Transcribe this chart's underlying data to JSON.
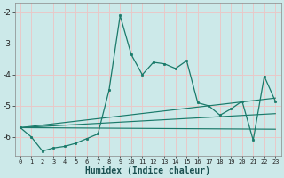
{
  "title": "",
  "xlabel": "Humidex (Indice chaleur)",
  "ylabel": "",
  "background_color": "#cce9e9",
  "grid_color": "#e8c8c8",
  "line_color": "#1a7a6a",
  "xlim": [
    -0.5,
    23.5
  ],
  "ylim": [
    -6.6,
    -1.7
  ],
  "yticks": [
    -2,
    -3,
    -4,
    -5,
    -6
  ],
  "xticks": [
    0,
    1,
    2,
    3,
    4,
    5,
    6,
    7,
    8,
    9,
    10,
    11,
    12,
    13,
    14,
    15,
    16,
    17,
    18,
    19,
    20,
    21,
    22,
    23
  ],
  "series1_x": [
    0,
    1,
    2,
    3,
    4,
    5,
    6,
    7,
    8,
    9,
    10,
    11,
    12,
    13,
    14,
    15,
    16,
    17,
    18,
    19,
    20,
    21,
    22,
    23
  ],
  "series1_y": [
    -5.7,
    -6.0,
    -6.45,
    -6.35,
    -6.3,
    -6.2,
    -6.05,
    -5.9,
    -4.5,
    -2.1,
    -3.35,
    -4.0,
    -3.6,
    -3.65,
    -3.8,
    -3.55,
    -4.9,
    -5.0,
    -5.3,
    -5.1,
    -4.85,
    -6.1,
    -4.05,
    -4.85
  ],
  "line3_x": [
    0,
    23
  ],
  "line3_y": [
    -5.7,
    -4.75
  ],
  "line4_x": [
    0,
    23
  ],
  "line4_y": [
    -5.7,
    -5.25
  ],
  "line5_x": [
    0,
    23
  ],
  "line5_y": [
    -5.7,
    -5.75
  ]
}
